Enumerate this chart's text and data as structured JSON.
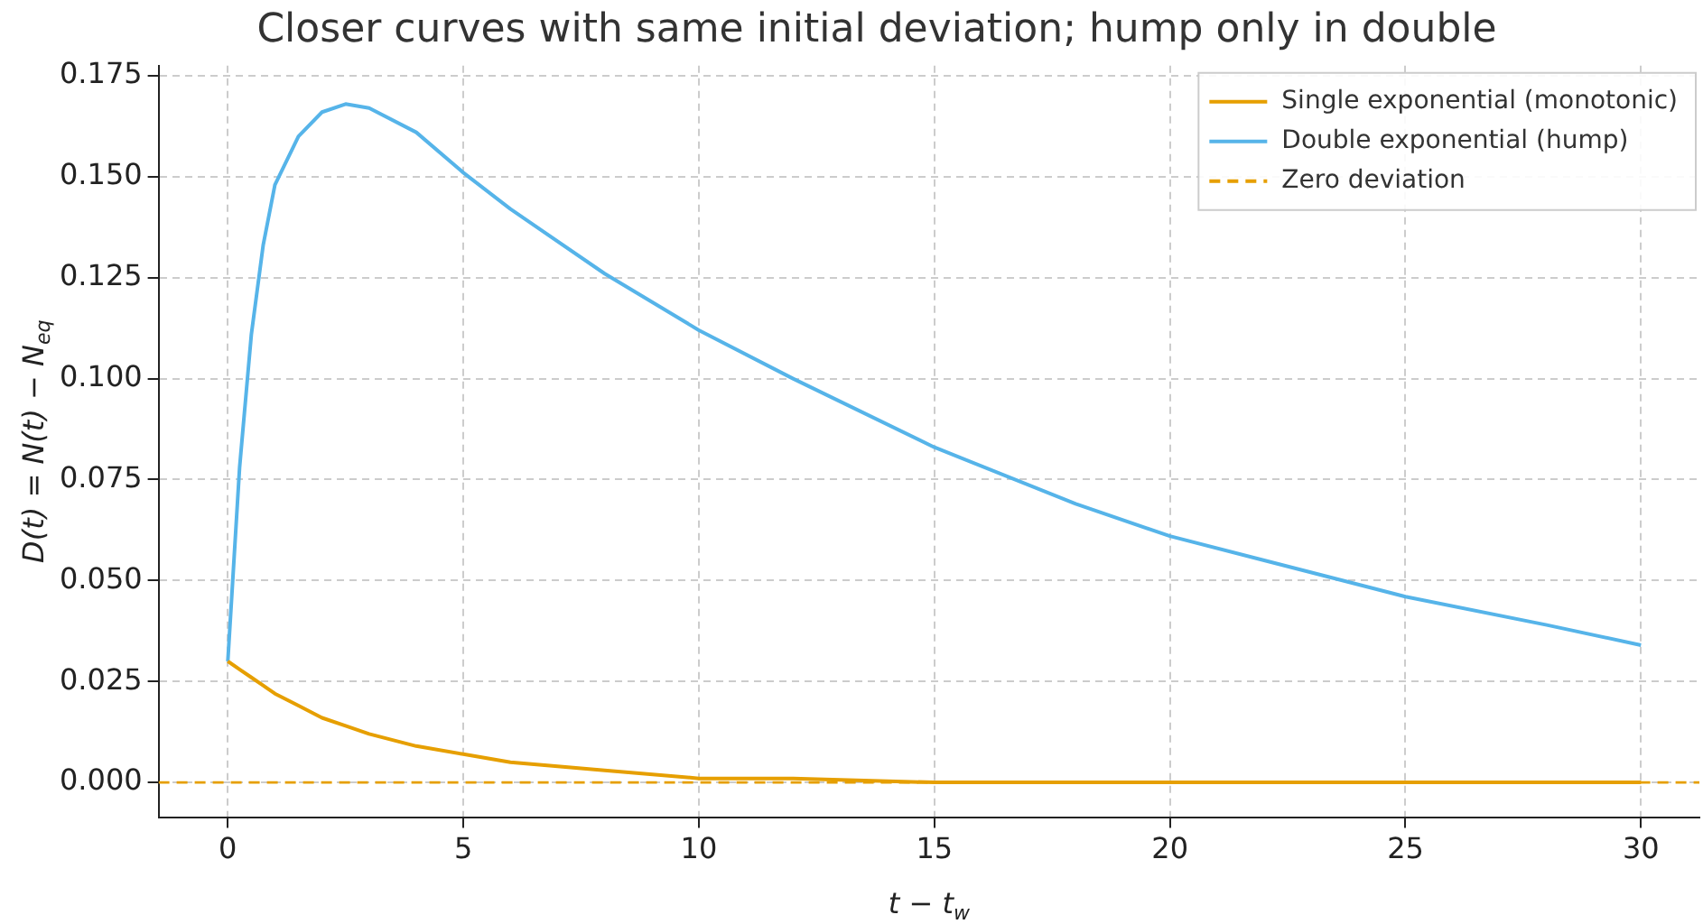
{
  "chart_data": {
    "type": "line",
    "title": "Closer curves with same initial deviation; hump only in double",
    "xlabel": "t − t$_{w}$",
    "ylabel": "D(t) = N(t) − N$_{eq}$",
    "x": [
      0,
      0.25,
      0.5,
      0.75,
      1,
      1.5,
      2,
      2.5,
      3,
      4,
      5,
      6,
      8,
      10,
      12,
      15,
      18,
      20,
      22,
      25,
      28,
      30
    ],
    "series": [
      {
        "name": "Single exponential (monotonic)",
        "color": "#e69f00",
        "values": [
          0.03,
          0.028,
          0.026,
          0.024,
          0.022,
          0.019,
          0.016,
          0.014,
          0.012,
          0.009,
          0.007,
          0.005,
          0.003,
          0.001,
          0.001,
          0.0,
          0.0,
          0,
          0,
          0,
          0,
          0
        ]
      },
      {
        "name": "Double exponential (hump)",
        "color": "#56b4e9",
        "values": [
          0.03,
          0.078,
          0.111,
          0.133,
          0.148,
          0.16,
          0.166,
          0.168,
          0.167,
          0.161,
          0.151,
          0.142,
          0.126,
          0.112,
          0.1,
          0.083,
          0.069,
          0.061,
          0.055,
          0.046,
          0.039,
          0.034
        ]
      }
    ],
    "ref_lines": [
      {
        "axis": "y",
        "value": 0,
        "label": "Zero deviation",
        "color": "#e69f00",
        "line_style": "dashed"
      }
    ],
    "xlim": [
      -1.47,
      31.24
    ],
    "xticks": [
      0,
      5,
      10,
      15,
      20,
      25,
      30
    ],
    "ylim": [
      -0.0086,
      0.1775
    ],
    "yticks": [
      {
        "value": 0,
        "label": "0.000"
      },
      {
        "value": 0.025,
        "label": "0.025"
      },
      {
        "value": 0.05,
        "label": "0.050"
      },
      {
        "value": 0.075,
        "label": "0.075"
      },
      {
        "value": 0.1,
        "label": "0.100"
      },
      {
        "value": 0.125,
        "label": "0.125"
      },
      {
        "value": 0.15,
        "label": "0.150"
      },
      {
        "value": 0.175,
        "label": "0.175"
      }
    ],
    "grid": true,
    "legend": "top right",
    "marker": "none",
    "line_style": "solid"
  }
}
